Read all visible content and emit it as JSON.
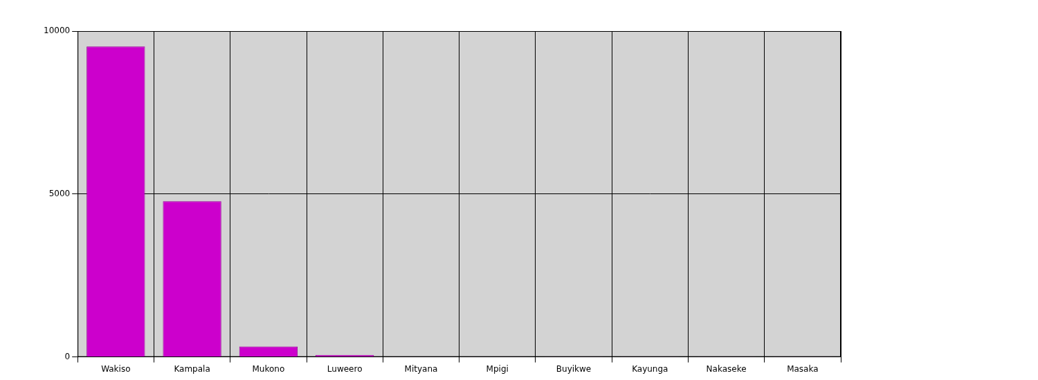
{
  "chart_data": {
    "type": "bar",
    "categories": [
      "Wakiso",
      "Kampala",
      "Mukono",
      "Luweero",
      "Mityana",
      "Mpigi",
      "Buyikwe",
      "Kayunga",
      "Nakaseke",
      "Masaka"
    ],
    "values": [
      9530,
      4780,
      320,
      60,
      10,
      10,
      5,
      5,
      5,
      5
    ],
    "color": "#cc00cc",
    "ylim": [
      0,
      10000
    ],
    "yticks": [
      0,
      5000,
      10000
    ],
    "grid": true
  }
}
